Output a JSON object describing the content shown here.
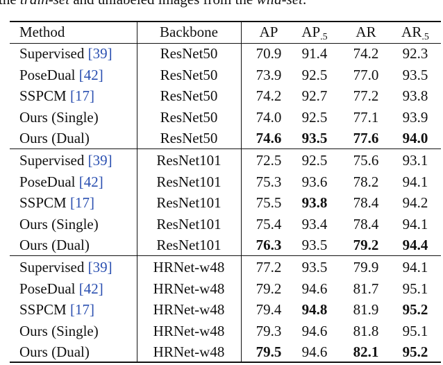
{
  "caption": [
    {
      "text": "the ",
      "italic": false
    },
    {
      "text": "train-set",
      "italic": true
    },
    {
      "text": " and unlabeled images from the ",
      "italic": false
    },
    {
      "text": "wild-set",
      "italic": true
    },
    {
      "text": ".",
      "italic": false
    }
  ],
  "table": {
    "header": [
      "Method",
      "Backbone",
      "AP",
      {
        "text": "AP",
        "sub": ".5"
      },
      "AR",
      {
        "text": "AR",
        "sub": ".5"
      }
    ],
    "groups": [
      [
        {
          "method": "Supervised",
          "cite": "[39]",
          "backbone": "ResNet50",
          "values": [
            "70.9",
            "91.4",
            "74.2",
            "92.3"
          ],
          "bold": [
            false,
            false,
            false,
            false
          ]
        },
        {
          "method": "PoseDual",
          "cite": "[42]",
          "backbone": "ResNet50",
          "values": [
            "73.9",
            "92.5",
            "77.0",
            "93.5"
          ],
          "bold": [
            false,
            false,
            false,
            false
          ]
        },
        {
          "method": "SSPCM",
          "cite": "[17]",
          "backbone": "ResNet50",
          "values": [
            "74.2",
            "92.7",
            "77.2",
            "93.8"
          ],
          "bold": [
            false,
            false,
            false,
            false
          ]
        },
        {
          "method": "Ours (Single)",
          "backbone": "ResNet50",
          "values": [
            "74.0",
            "92.5",
            "77.1",
            "93.9"
          ],
          "bold": [
            false,
            false,
            false,
            false
          ]
        },
        {
          "method": "Ours (Dual)",
          "backbone": "ResNet50",
          "values": [
            "74.6",
            "93.5",
            "77.6",
            "94.0"
          ],
          "bold": [
            true,
            true,
            true,
            true
          ]
        }
      ],
      [
        {
          "method": "Supervised",
          "cite": "[39]",
          "backbone": "ResNet101",
          "values": [
            "72.5",
            "92.5",
            "75.6",
            "93.1"
          ],
          "bold": [
            false,
            false,
            false,
            false
          ]
        },
        {
          "method": "PoseDual",
          "cite": "[42]",
          "backbone": "ResNet101",
          "values": [
            "75.3",
            "93.6",
            "78.2",
            "94.1"
          ],
          "bold": [
            false,
            false,
            false,
            false
          ]
        },
        {
          "method": "SSPCM",
          "cite": "[17]",
          "backbone": "ResNet101",
          "values": [
            "75.5",
            "93.8",
            "78.4",
            "94.2"
          ],
          "bold": [
            false,
            true,
            false,
            false
          ]
        },
        {
          "method": "Ours (Single)",
          "backbone": "ResNet101",
          "values": [
            "75.4",
            "93.4",
            "78.4",
            "94.1"
          ],
          "bold": [
            false,
            false,
            false,
            false
          ]
        },
        {
          "method": "Ours (Dual)",
          "backbone": "ResNet101",
          "values": [
            "76.3",
            "93.5",
            "79.2",
            "94.4"
          ],
          "bold": [
            true,
            false,
            true,
            true
          ]
        }
      ],
      [
        {
          "method": "Supervised",
          "cite": "[39]",
          "backbone": "HRNet-w48",
          "values": [
            "77.2",
            "93.5",
            "79.9",
            "94.1"
          ],
          "bold": [
            false,
            false,
            false,
            false
          ]
        },
        {
          "method": "PoseDual",
          "cite": "[42]",
          "backbone": "HRNet-w48",
          "values": [
            "79.2",
            "94.6",
            "81.7",
            "95.1"
          ],
          "bold": [
            false,
            false,
            false,
            false
          ]
        },
        {
          "method": "SSPCM",
          "cite": "[17]",
          "backbone": "HRNet-w48",
          "values": [
            "79.4",
            "94.8",
            "81.9",
            "95.2"
          ],
          "bold": [
            false,
            true,
            false,
            true
          ]
        },
        {
          "method": "Ours (Single)",
          "backbone": "HRNet-w48",
          "values": [
            "79.3",
            "94.6",
            "81.8",
            "95.1"
          ],
          "bold": [
            false,
            false,
            false,
            false
          ]
        },
        {
          "method": "Ours (Dual)",
          "backbone": "HRNet-w48",
          "values": [
            "79.5",
            "94.6",
            "82.1",
            "95.2"
          ],
          "bold": [
            true,
            false,
            true,
            true
          ]
        }
      ]
    ]
  }
}
